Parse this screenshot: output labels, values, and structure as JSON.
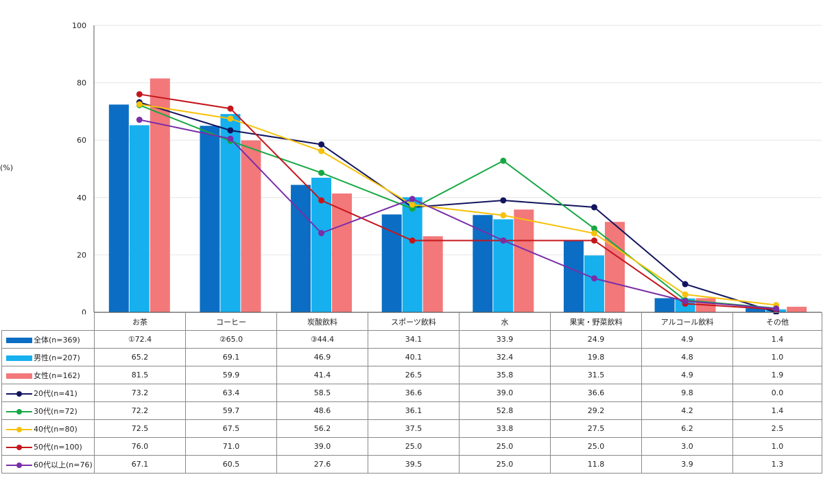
{
  "chart_data": {
    "type": "bar+line",
    "ylabel": "(%)",
    "ylim": [
      0,
      100
    ],
    "yticks": [
      "0",
      "20",
      "40",
      "60",
      "80",
      "100"
    ],
    "categories": [
      "お茶",
      "コーヒー",
      "炭酸飲料",
      "スポーツ飲料",
      "水",
      "果実・野菜飲料",
      "アルコール飲料",
      "その他"
    ],
    "bar_series": [
      {
        "name": "全体(n=369)",
        "color": "#0b6ec4",
        "values": [
          72.4,
          65.0,
          44.4,
          34.1,
          33.9,
          24.9,
          4.9,
          1.4
        ],
        "labels": [
          "①72.4",
          "②65.0",
          "③44.4",
          "34.1",
          "33.9",
          "24.9",
          "4.9",
          "1.4"
        ]
      },
      {
        "name": "男性(n=207)",
        "color": "#16b0ee",
        "values": [
          65.2,
          69.1,
          46.9,
          40.1,
          32.4,
          19.8,
          4.8,
          1.0
        ],
        "labels": [
          "65.2",
          "69.1",
          "46.9",
          "40.1",
          "32.4",
          "19.8",
          "4.8",
          "1.0"
        ]
      },
      {
        "name": "女性(n=162)",
        "color": "#f2787a",
        "values": [
          81.5,
          59.9,
          41.4,
          26.5,
          35.8,
          31.5,
          4.9,
          1.9
        ],
        "labels": [
          "81.5",
          "59.9",
          "41.4",
          "26.5",
          "35.8",
          "31.5",
          "4.9",
          "1.9"
        ]
      }
    ],
    "line_series": [
      {
        "name": "20代(n=41)",
        "color": "#12145e",
        "values": [
          73.2,
          63.4,
          58.5,
          36.6,
          39.0,
          36.6,
          9.8,
          0.0
        ],
        "labels": [
          "73.2",
          "63.4",
          "58.5",
          "36.6",
          "39.0",
          "36.6",
          "9.8",
          "0.0"
        ]
      },
      {
        "name": "30代(n=72)",
        "color": "#17a843",
        "values": [
          72.2,
          59.7,
          48.6,
          36.1,
          52.8,
          29.2,
          4.2,
          1.4
        ],
        "labels": [
          "72.2",
          "59.7",
          "48.6",
          "36.1",
          "52.8",
          "29.2",
          "4.2",
          "1.4"
        ]
      },
      {
        "name": "40代(n=80)",
        "color": "#f6c20c",
        "values": [
          72.5,
          67.5,
          56.2,
          37.5,
          33.8,
          27.5,
          6.2,
          2.5
        ],
        "labels": [
          "72.5",
          "67.5",
          "56.2",
          "37.5",
          "33.8",
          "27.5",
          "6.2",
          "2.5"
        ]
      },
      {
        "name": "50代(n=100)",
        "color": "#c4161c",
        "values": [
          76.0,
          71.0,
          39.0,
          25.0,
          25.0,
          25.0,
          3.0,
          1.0
        ],
        "labels": [
          "76.0",
          "71.0",
          "39.0",
          "25.0",
          "25.0",
          "25.0",
          "3.0",
          "1.0"
        ]
      },
      {
        "name": "60代以上(n=76)",
        "color": "#7a2ea8",
        "values": [
          67.1,
          60.5,
          27.6,
          39.5,
          25.0,
          11.8,
          3.9,
          1.3
        ],
        "labels": [
          "67.1",
          "60.5",
          "27.6",
          "39.5",
          "25.0",
          "11.8",
          "3.9",
          "1.3"
        ]
      }
    ],
    "grid": true,
    "legend": "data-table"
  }
}
